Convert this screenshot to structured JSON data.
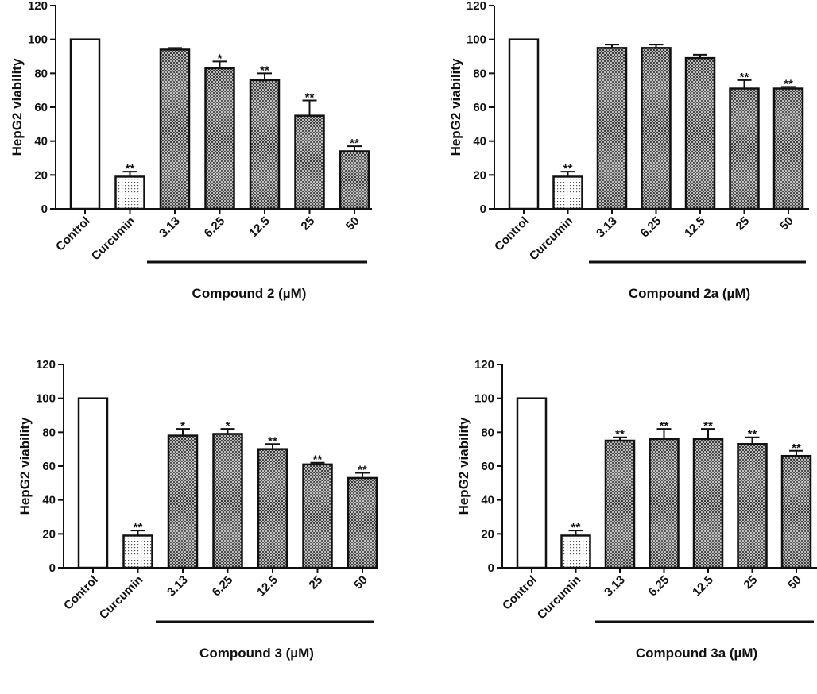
{
  "chart_data": [
    {
      "type": "bar",
      "panel": "top-left",
      "ylabel": "HepG2 viability",
      "group_label": "Compound 2 (µM)",
      "ylim": [
        0,
        120
      ],
      "yticks": [
        0,
        20,
        40,
        60,
        80,
        100,
        120
      ],
      "categories": [
        "Control",
        "Curcumin",
        "3.13",
        "6.25",
        "12.5",
        "25",
        "50"
      ],
      "values": [
        100,
        19,
        94,
        83,
        76,
        55,
        34
      ],
      "errors": [
        0,
        3,
        1,
        4,
        4,
        9,
        3
      ],
      "significance": [
        "",
        "**",
        "",
        "*",
        "**",
        "**",
        "**"
      ],
      "fills": [
        "white",
        "dots",
        "checker",
        "checker",
        "checker",
        "checker",
        "checker"
      ]
    },
    {
      "type": "bar",
      "panel": "top-right",
      "ylabel": "HepG2 viability",
      "group_label": "Compound 2a (µM)",
      "ylim": [
        0,
        120
      ],
      "yticks": [
        0,
        20,
        40,
        60,
        80,
        100,
        120
      ],
      "categories": [
        "Control",
        "Curcumin",
        "3.13",
        "6.25",
        "12.5",
        "25",
        "50"
      ],
      "values": [
        100,
        19,
        95,
        95,
        89,
        71,
        71
      ],
      "errors": [
        0,
        3,
        2,
        2,
        2,
        5,
        1
      ],
      "significance": [
        "",
        "**",
        "",
        "",
        "",
        "**",
        "**"
      ],
      "fills": [
        "white",
        "dots",
        "checker",
        "checker",
        "checker",
        "checker",
        "checker"
      ]
    },
    {
      "type": "bar",
      "panel": "bottom-left",
      "ylabel": "HepG2 viability",
      "group_label": "Compound 3 (µM)",
      "ylim": [
        0,
        120
      ],
      "yticks": [
        0,
        20,
        40,
        60,
        80,
        100,
        120
      ],
      "categories": [
        "Control",
        "Curcumin",
        "3.13",
        "6.25",
        "12.5",
        "25",
        "50"
      ],
      "values": [
        100,
        19,
        78,
        79,
        70,
        61,
        53
      ],
      "errors": [
        0,
        3,
        4,
        3,
        3,
        1,
        3
      ],
      "significance": [
        "",
        "**",
        "*",
        "*",
        "**",
        "**",
        "**"
      ],
      "fills": [
        "white",
        "dots",
        "checker",
        "checker",
        "checker",
        "checker",
        "checker"
      ]
    },
    {
      "type": "bar",
      "panel": "bottom-right",
      "ylabel": "HepG2 viability",
      "group_label": "Compound 3a (µM)",
      "ylim": [
        0,
        120
      ],
      "yticks": [
        0,
        20,
        40,
        60,
        80,
        100,
        120
      ],
      "categories": [
        "Control",
        "Curcumin",
        "3.13",
        "6.25",
        "12.5",
        "25",
        "50"
      ],
      "values": [
        100,
        19,
        75,
        76,
        76,
        73,
        66
      ],
      "errors": [
        0,
        3,
        2,
        6,
        6,
        4,
        3
      ],
      "significance": [
        "",
        "**",
        "**",
        "**",
        "**",
        "**",
        "**"
      ],
      "fills": [
        "white",
        "dots",
        "checker",
        "checker",
        "checker",
        "checker",
        "checker"
      ]
    }
  ]
}
